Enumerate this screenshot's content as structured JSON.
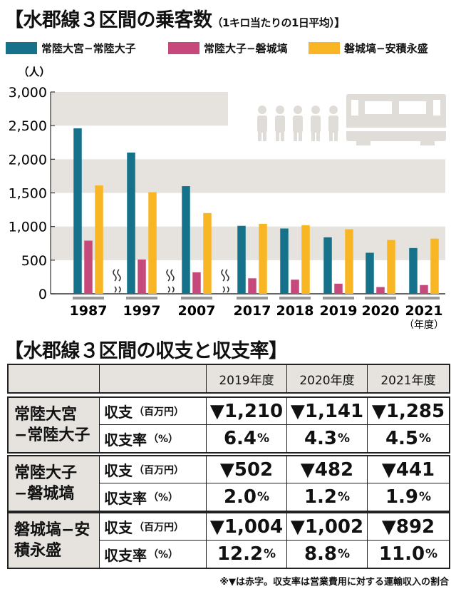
{
  "chart_data": {
    "type": "bar",
    "title": "【水郡線３区間の乗客数",
    "subtitle": "（1キロ当たりの1日平均）】",
    "ylabel": "（人）",
    "xlabel_unit": "（年度）",
    "ylim": [
      0,
      3000
    ],
    "yticks": [
      "0",
      "500",
      "1,000",
      "1,500",
      "2,000",
      "2,500",
      "3,000"
    ],
    "categories": [
      "1987",
      "1997",
      "2007",
      "2017",
      "2018",
      "2019",
      "2020",
      "2021"
    ],
    "series": [
      {
        "name": "常陸大宮−常陸大子",
        "color": "#15728a",
        "values": [
          2460,
          2100,
          1600,
          1010,
          970,
          840,
          610,
          680
        ]
      },
      {
        "name": "常陸大子−磐城塙",
        "color": "#c6497c",
        "values": [
          790,
          510,
          320,
          230,
          210,
          150,
          100,
          130
        ]
      },
      {
        "name": "磐城塙−安積永盛",
        "color": "#f8b625",
        "values": [
          1610,
          1510,
          1200,
          1040,
          1020,
          960,
          800,
          820
        ]
      }
    ]
  },
  "table": {
    "title": "【水郡線３区間の収支と収支率】",
    "years": [
      "2019年度",
      "2020年度",
      "2021年度"
    ],
    "row_label_balance": "収支",
    "row_unit_balance": "（百万円）",
    "row_label_ratio": "収支率",
    "row_unit_ratio": "（%）",
    "sections": [
      {
        "name": "常陸大宮−常陸大子",
        "balance": [
          "▼1,210",
          "▼1,141",
          "▼1,285"
        ],
        "ratio": [
          "6.4",
          "4.3",
          "4.5"
        ]
      },
      {
        "name": "常陸大子−磐城塙",
        "balance": [
          "▼502",
          "▼482",
          "▼441"
        ],
        "ratio": [
          "2.0",
          "1.2",
          "1.9"
        ]
      },
      {
        "name": "磐城塙−安積永盛",
        "balance": [
          "▼1,004",
          "▼1,002",
          "▼892"
        ],
        "ratio": [
          "12.2",
          "8.8",
          "11.0"
        ]
      }
    ],
    "percent": "%"
  },
  "note": "※▼は赤字。収支率は営業費用に対する運輸収入の割合",
  "colors": {
    "band": "#e6e3df",
    "icon": "#e0ddd8"
  }
}
